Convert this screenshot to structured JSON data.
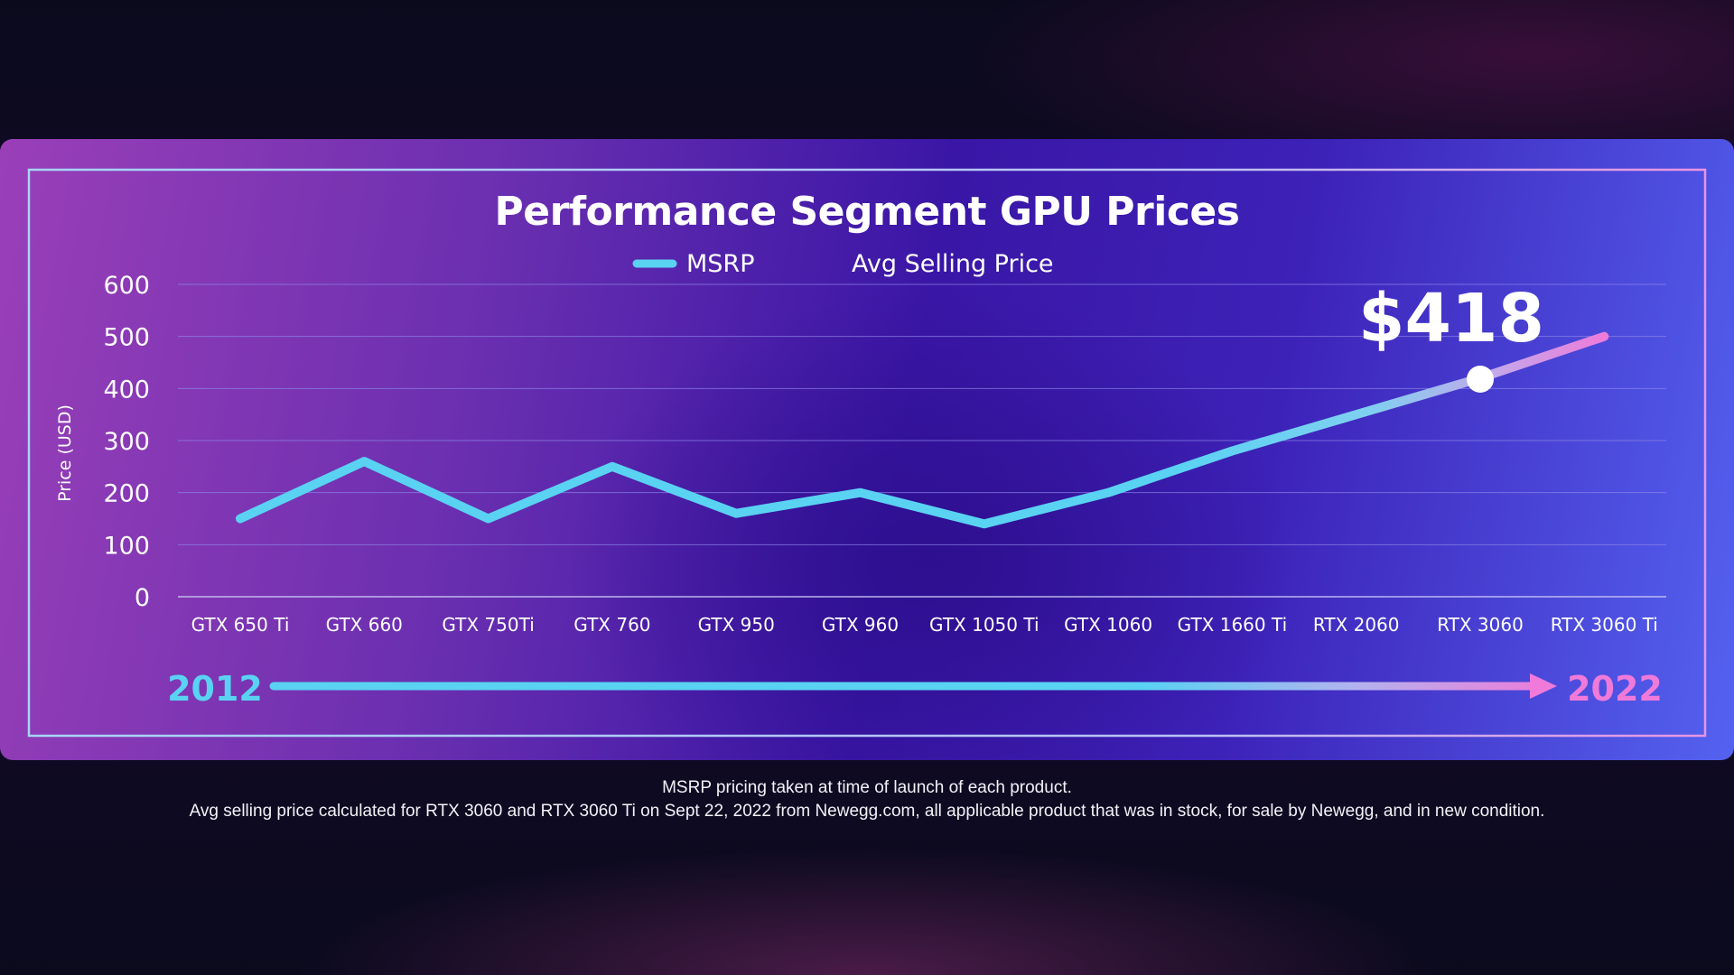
{
  "chart_data": {
    "type": "line",
    "title": "Performance Segment GPU Prices",
    "ylabel": "Price (USD)",
    "xlabel": "",
    "ylim": [
      0,
      600
    ],
    "yticks": [
      "0",
      "100",
      "200",
      "300",
      "400",
      "500",
      "600"
    ],
    "categories": [
      "GTX 650 Ti",
      "GTX 660",
      "GTX 750Ti",
      "GTX 760",
      "GTX 950",
      "GTX 960",
      "GTX 1050 Ti",
      "GTX 1060",
      "GTX 1660 Ti",
      "RTX 2060",
      "RTX 3060",
      "RTX 3060 Ti"
    ],
    "legend": {
      "placement": "top-center"
    },
    "grid": true,
    "series": [
      {
        "name": "MSRP",
        "color": "#5ad2f2",
        "values": [
          150,
          260,
          150,
          250,
          160,
          200,
          140,
          200,
          280,
          350,
          420,
          500
        ]
      },
      {
        "name": "Avg Selling Price",
        "color": "#ef7ad9"
      }
    ],
    "annotation": {
      "text": "$418",
      "category": "RTX 3060",
      "value": 418
    },
    "timeline": {
      "start": "2012",
      "end": "2022"
    }
  },
  "colors": {
    "msrp_cyan": "#5ad2f2",
    "asp_pink": "#ef7ad9",
    "grid": "#8d86e8",
    "frame": "#9fc9f4"
  },
  "footnotes": [
    "MSRP pricing taken at time of launch of each product.",
    "Avg selling price calculated for RTX 3060 and RTX 3060 Ti on Sept 22, 2022 from Newegg.com, all applicable product that was in stock, for sale by Newegg, and in new condition."
  ]
}
